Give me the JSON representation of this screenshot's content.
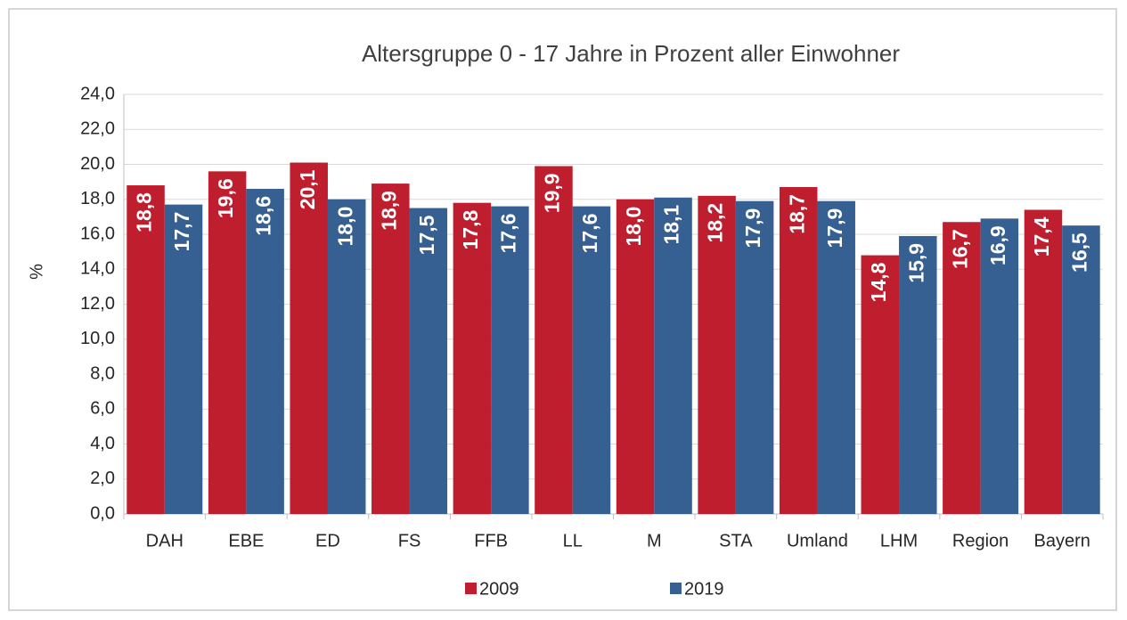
{
  "chart_data": {
    "type": "bar",
    "title": "Altersgruppe 0 - 17 Jahre in Prozent aller Einwohner",
    "y_label": "%",
    "categories": [
      "DAH",
      "EBE",
      "ED",
      "FS",
      "FFB",
      "LL",
      "M",
      "STA",
      "Umland",
      "LHM",
      "Region",
      "Bayern"
    ],
    "series": [
      {
        "name": "2009",
        "color": "#be1e2d",
        "values": [
          18.8,
          19.6,
          20.1,
          18.9,
          17.8,
          19.9,
          18.0,
          18.2,
          18.7,
          14.8,
          16.7,
          17.4
        ],
        "value_labels": [
          "18,8",
          "19,6",
          "20,1",
          "18,9",
          "17,8",
          "19,9",
          "18,0",
          "18,2",
          "18,7",
          "14,8",
          "16,7",
          "17,4"
        ]
      },
      {
        "name": "2019",
        "color": "#365f92",
        "values": [
          17.7,
          18.6,
          18.0,
          17.5,
          17.6,
          17.6,
          18.1,
          17.9,
          17.9,
          15.9,
          16.9,
          16.5
        ],
        "value_labels": [
          "17,7",
          "18,6",
          "18,0",
          "17,5",
          "17,6",
          "17,6",
          "18,1",
          "17,9",
          "17,9",
          "15,9",
          "16,9",
          "16,5"
        ]
      }
    ],
    "ylim": [
      0,
      24
    ],
    "yticks": [
      {
        "value": 0,
        "label": "0,0"
      },
      {
        "value": 2,
        "label": "2,0"
      },
      {
        "value": 4,
        "label": "4,0"
      },
      {
        "value": 6,
        "label": "6,0"
      },
      {
        "value": 8,
        "label": "8,0"
      },
      {
        "value": 10,
        "label": "10,0"
      },
      {
        "value": 12,
        "label": "12,0"
      },
      {
        "value": 14,
        "label": "14,0"
      },
      {
        "value": 16,
        "label": "16,0"
      },
      {
        "value": 18,
        "label": "18,0"
      },
      {
        "value": 20,
        "label": "20,0"
      },
      {
        "value": 22,
        "label": "22,0"
      },
      {
        "value": 24,
        "label": "24,0"
      }
    ],
    "grid": true,
    "legend": "bottom"
  }
}
